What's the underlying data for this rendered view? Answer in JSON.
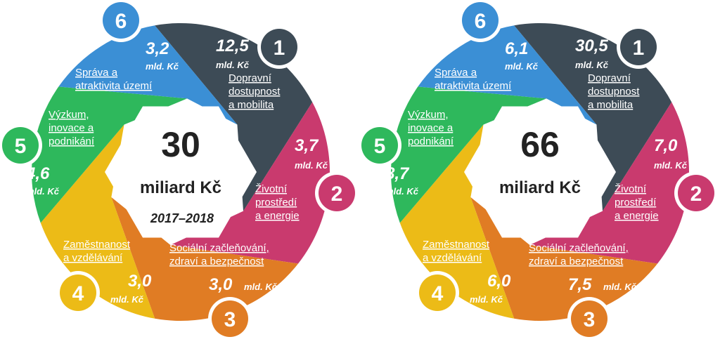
{
  "diagrams": [
    {
      "total": "30",
      "unit": "miliard Kč",
      "period": "2017–2018",
      "segments": [
        {
          "num": "1",
          "value": "12,5",
          "unit": "mld. Kč",
          "label": [
            "Dopravní",
            "dostupnost",
            "a mobilita"
          ],
          "color": "#3d4b56"
        },
        {
          "num": "2",
          "value": "3,7",
          "unit": "mld. Kč",
          "label": [
            "Životní",
            "prostředí",
            "a energie"
          ],
          "color": "#c93a6e"
        },
        {
          "num": "3",
          "value": "3,0",
          "unit": "mld. Kč",
          "label": [
            "Sociální začleňování,",
            "zdraví a bezpečnost"
          ],
          "color": "#e07c24"
        },
        {
          "num": "4",
          "value": "3,0",
          "unit": "mld. Kč",
          "label": [
            "Zaměstnanost",
            "a vzdělávání"
          ],
          "color": "#ecbb17"
        },
        {
          "num": "5",
          "value": "4,6",
          "unit": "mld. Kč",
          "label": [
            "Výzkum,",
            "inovace a",
            "podnikání"
          ],
          "color": "#2eb85c"
        },
        {
          "num": "6",
          "value": "3,2",
          "unit": "mld. Kč",
          "label": [
            "Správa a",
            "atraktivita území"
          ],
          "color": "#3b8fd5"
        }
      ]
    },
    {
      "total": "66",
      "unit": "miliard Kč",
      "period": "",
      "segments": [
        {
          "num": "1",
          "value": "30,5",
          "unit": "mld. Kč",
          "label": [
            "Dopravní",
            "dostupnost",
            "a mobilita"
          ],
          "color": "#3d4b56"
        },
        {
          "num": "2",
          "value": "7,0",
          "unit": "mld. Kč",
          "label": [
            "Životní",
            "prostředí",
            "a energie"
          ],
          "color": "#c93a6e"
        },
        {
          "num": "3",
          "value": "7,5",
          "unit": "mld. Kč",
          "label": [
            "Sociální začleňování,",
            "zdraví a bezpečnost"
          ],
          "color": "#e07c24"
        },
        {
          "num": "4",
          "value": "6,0",
          "unit": "mld. Kč",
          "label": [
            "Zaměstnanost",
            "a vzdělávání"
          ],
          "color": "#ecbb17"
        },
        {
          "num": "5",
          "value": "8,7",
          "unit": "mld. Kč",
          "label": [
            "Výzkum,",
            "inovace a",
            "podnikání"
          ],
          "color": "#2eb85c"
        },
        {
          "num": "6",
          "value": "6,1",
          "unit": "mld. Kč",
          "label": [
            "Správa a",
            "atraktivita území"
          ],
          "color": "#3b8fd5"
        }
      ]
    }
  ]
}
